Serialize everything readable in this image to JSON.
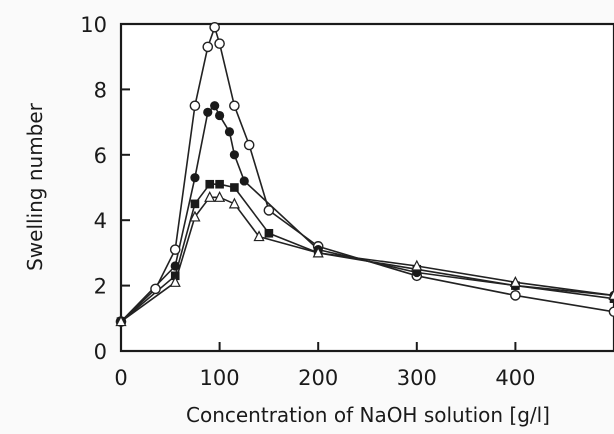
{
  "chart_data": {
    "type": "line",
    "title": "",
    "xlabel": "Concentration of NaOH solution [g/l]",
    "ylabel": "Swelling number",
    "xlim": [
      0,
      500
    ],
    "ylim": [
      0,
      10
    ],
    "x_ticks": [
      0,
      100,
      200,
      300,
      400
    ],
    "y_ticks": [
      0,
      2,
      4,
      6,
      8,
      10
    ],
    "grid": false,
    "legend": "none",
    "series": [
      {
        "marker": "open-circle",
        "x": [
          0,
          35,
          55,
          75,
          88,
          95,
          100,
          115,
          130,
          150,
          200,
          300,
          400,
          500
        ],
        "y": [
          0.9,
          1.9,
          3.1,
          7.5,
          9.3,
          9.9,
          9.4,
          7.5,
          6.3,
          4.3,
          3.2,
          2.3,
          1.7,
          1.2
        ]
      },
      {
        "marker": "filled-circle",
        "x": [
          0,
          55,
          75,
          88,
          95,
          100,
          110,
          115,
          125,
          200,
          300,
          400,
          500
        ],
        "y": [
          0.9,
          2.6,
          5.3,
          7.3,
          7.5,
          7.2,
          6.7,
          6.0,
          5.2,
          3.1,
          2.4,
          2.0,
          1.7
        ]
      },
      {
        "marker": "filled-square",
        "x": [
          0,
          55,
          75,
          90,
          100,
          115,
          150,
          200,
          300,
          400,
          500
        ],
        "y": [
          0.9,
          2.3,
          4.5,
          5.1,
          5.1,
          5.0,
          3.6,
          3.0,
          2.5,
          2.0,
          1.6
        ]
      },
      {
        "marker": "open-triangle",
        "x": [
          0,
          55,
          75,
          90,
          100,
          115,
          140,
          200,
          300,
          400,
          500
        ],
        "y": [
          0.9,
          2.1,
          4.1,
          4.7,
          4.7,
          4.5,
          3.5,
          3.0,
          2.6,
          2.1,
          1.7
        ]
      }
    ]
  }
}
